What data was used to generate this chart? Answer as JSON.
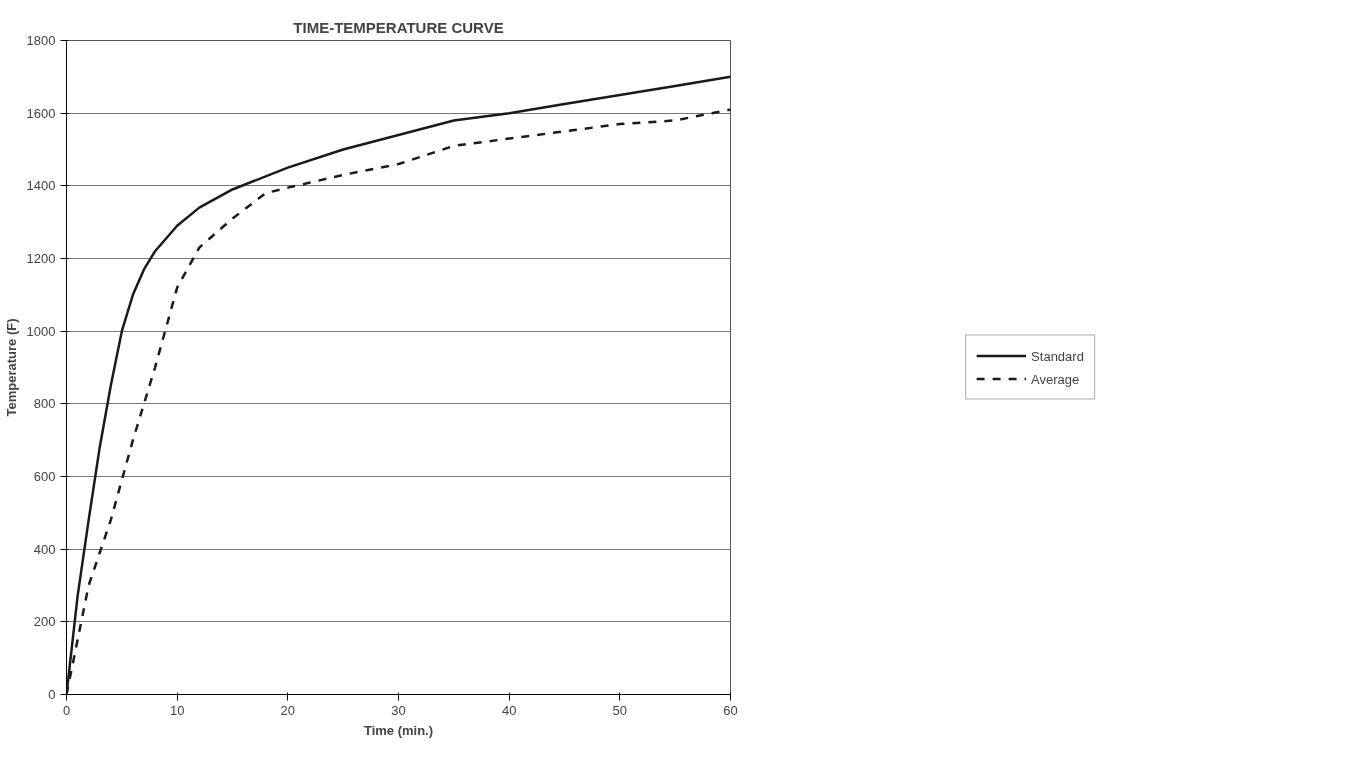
{
  "chart_data": {
    "type": "line",
    "title": "TIME-TEMPERATURE CURVE",
    "xlabel": "Time (min.)",
    "ylabel": "Temperature (F)",
    "xlim": [
      0,
      60
    ],
    "xticks": [
      0,
      10,
      20,
      30,
      40,
      50,
      60
    ],
    "ylim": [
      0,
      1800
    ],
    "yticks": [
      0,
      200,
      400,
      600,
      800,
      1000,
      1200,
      1400,
      1600,
      1800
    ],
    "grid": "y",
    "legend": "right",
    "marker": "none",
    "series": [
      {
        "name": "Standard",
        "color": "#1a1a1a",
        "line_style": "solid",
        "x": [
          0,
          1,
          2,
          3,
          4,
          5,
          6,
          7,
          8,
          10,
          12,
          15,
          20,
          25,
          30,
          35,
          40,
          45,
          50,
          55,
          60
        ],
        "values": [
          0,
          270,
          480,
          680,
          850,
          1000,
          1100,
          1170,
          1220,
          1290,
          1340,
          1390,
          1450,
          1500,
          1540,
          1580,
          1600,
          1625,
          1650,
          1675,
          1700
        ]
      },
      {
        "name": "Average",
        "color": "#1a1a1a",
        "line_style": "dashed",
        "x": [
          0,
          2,
          4,
          6,
          8,
          10,
          12,
          15,
          18,
          20,
          25,
          30,
          35,
          40,
          45,
          50,
          55,
          60
        ],
        "values": [
          0,
          300,
          480,
          700,
          900,
          1120,
          1230,
          1310,
          1380,
          1395,
          1430,
          1460,
          1510,
          1530,
          1550,
          1570,
          1580,
          1610
        ]
      }
    ]
  }
}
